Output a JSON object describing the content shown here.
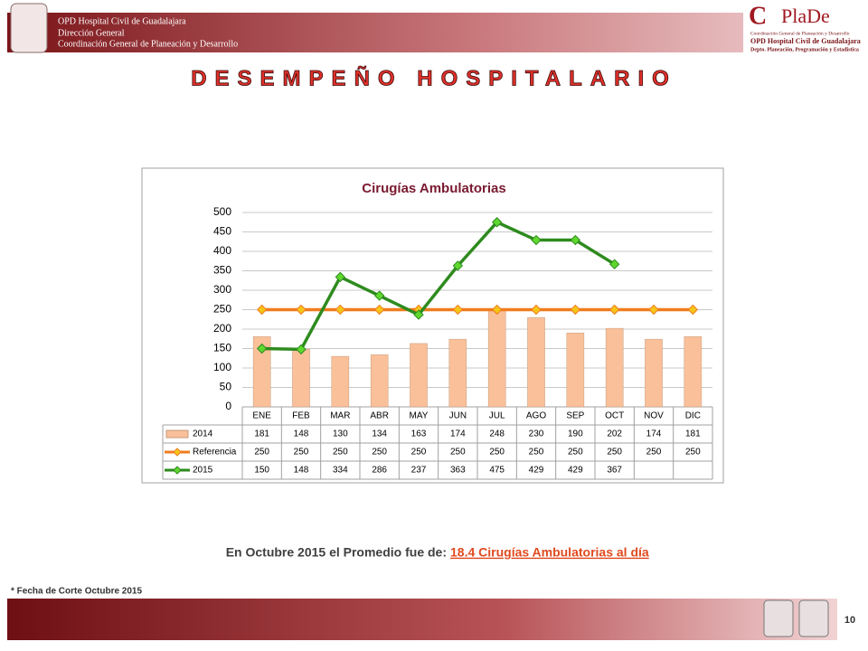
{
  "header": {
    "left_lines": [
      "OPD Hospital Civil de Guadalajara",
      "Dirección General",
      "Coordinación General de Planeación y Desarrollo"
    ],
    "logo_initial": "C",
    "logo_word": "PlaDe",
    "right_lines": [
      "Coordinación General de Planeación y Desarrollo",
      "OPD Hospital Civil de Guadalajara",
      "Depto. Planeación, Programación y Estadística"
    ]
  },
  "slide_title": "DESEMPEÑO HOSPITALARIO",
  "chart_data": {
    "type": "bar",
    "title": "Cirugías Ambulatorias",
    "categories": [
      "ENE",
      "FEB",
      "MAR",
      "ABR",
      "MAY",
      "JUN",
      "JUL",
      "AGO",
      "SEP",
      "OCT",
      "NOV",
      "DIC"
    ],
    "series": [
      {
        "name": "2014",
        "type": "bar",
        "color": "#f9c09a",
        "values": [
          181,
          148,
          130,
          134,
          163,
          174,
          248,
          230,
          190,
          202,
          174,
          181
        ]
      },
      {
        "name": "Referencia",
        "type": "line",
        "color": "#f07c1e",
        "marker_color": "#f5c518",
        "values": [
          250,
          250,
          250,
          250,
          250,
          250,
          250,
          250,
          250,
          250,
          250,
          250
        ]
      },
      {
        "name": "2015",
        "type": "line",
        "color": "#2e8b1e",
        "marker_color": "#5fd82e",
        "values": [
          150,
          148,
          334,
          286,
          237,
          363,
          475,
          429,
          429,
          367,
          null,
          null
        ]
      }
    ],
    "ylim": [
      0,
      500
    ],
    "yticks": [
      0,
      50,
      100,
      150,
      200,
      250,
      300,
      350,
      400,
      450,
      500
    ],
    "grid": true,
    "data_table": true
  },
  "summary": {
    "text": "En Octubre 2015 el Promedio fue de:",
    "highlight": "18.4 Cirugías Ambulatorias al día"
  },
  "footnote": "* Fecha de Corte Octubre 2015",
  "page_number": 10
}
